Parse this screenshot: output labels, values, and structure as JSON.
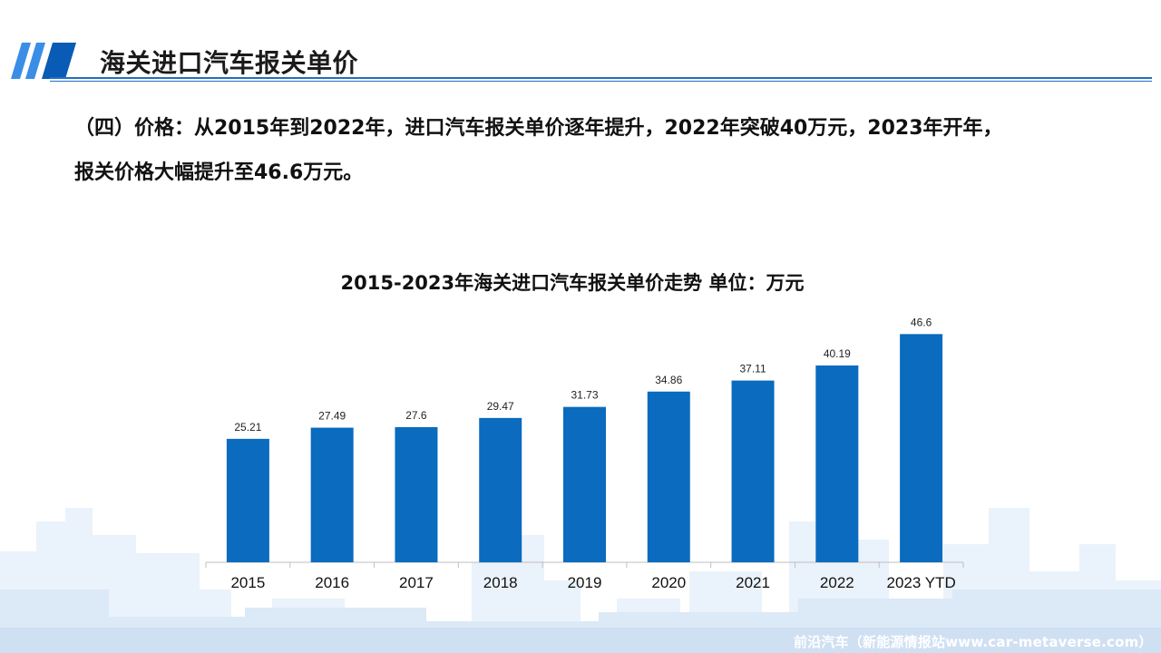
{
  "header": {
    "title": "海关进口汽车报关单价"
  },
  "description": {
    "line1": "（四）价格：从2015年到2022年，进口汽车报关单价逐年提升，2022年突破40万元，2023年开年，",
    "line2": "报关价格大幅提升至46.6万元。"
  },
  "chart_data": {
    "type": "bar",
    "title": "2015-2023年海关进口汽车报关单价走势 单位：万元",
    "categories": [
      "2015",
      "2016",
      "2017",
      "2018",
      "2019",
      "2020",
      "2021",
      "2022",
      "2023 YTD"
    ],
    "values": [
      25.21,
      27.49,
      27.6,
      29.47,
      31.73,
      34.86,
      37.11,
      40.19,
      46.6
    ],
    "value_labels": [
      "25.21",
      "27.49",
      "27.6",
      "29.47",
      "31.73",
      "34.86",
      "37.11",
      "40.19",
      "46.6"
    ],
    "ylim": [
      0,
      50
    ],
    "grid": false,
    "color": "#0a6bbf"
  },
  "watermark": "前沿汽车（新能源情报站www.car-metaverse.com）",
  "colors": {
    "accent": "#1f6fc4",
    "bar": "#0a6bbf"
  }
}
